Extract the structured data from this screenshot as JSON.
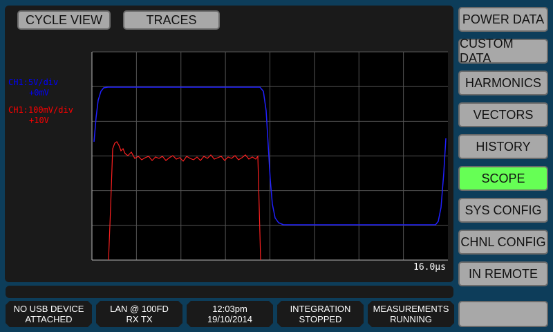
{
  "tabs": [
    {
      "label": "CYCLE VIEW"
    },
    {
      "label": "TRACES"
    }
  ],
  "scope": {
    "ch_blue": {
      "label": "CH1:5V/div",
      "offset": "+0mV",
      "color": "#0000ff"
    },
    "ch_red": {
      "label": "CH1:100mV/div",
      "offset": "+10V",
      "color": "#ff0000"
    },
    "timebase": "16.0µs"
  },
  "menu": [
    {
      "label": "POWER DATA"
    },
    {
      "label": "CUSTOM DATA"
    },
    {
      "label": "HARMONICS"
    },
    {
      "label": "VECTORS"
    },
    {
      "label": "HISTORY"
    },
    {
      "label": "SCOPE",
      "active": true
    },
    {
      "label": "SYS CONFIG"
    },
    {
      "label": "CHNL CONFIG"
    },
    {
      "label": "IN REMOTE"
    }
  ],
  "status": [
    {
      "line1": "NO USB DEVICE",
      "line2": "ATTACHED"
    },
    {
      "line1": "LAN @ 100FD",
      "line2": "RX TX"
    },
    {
      "line1": "12:03pm",
      "line2": "19/10/2014"
    },
    {
      "line1": "INTEGRATION",
      "line2": "STOPPED"
    },
    {
      "line1": "MEASUREMENTS",
      "line2": "RUNNING"
    }
  ],
  "colors": {
    "active": "#66ff55",
    "background": "#0d3d5a"
  }
}
